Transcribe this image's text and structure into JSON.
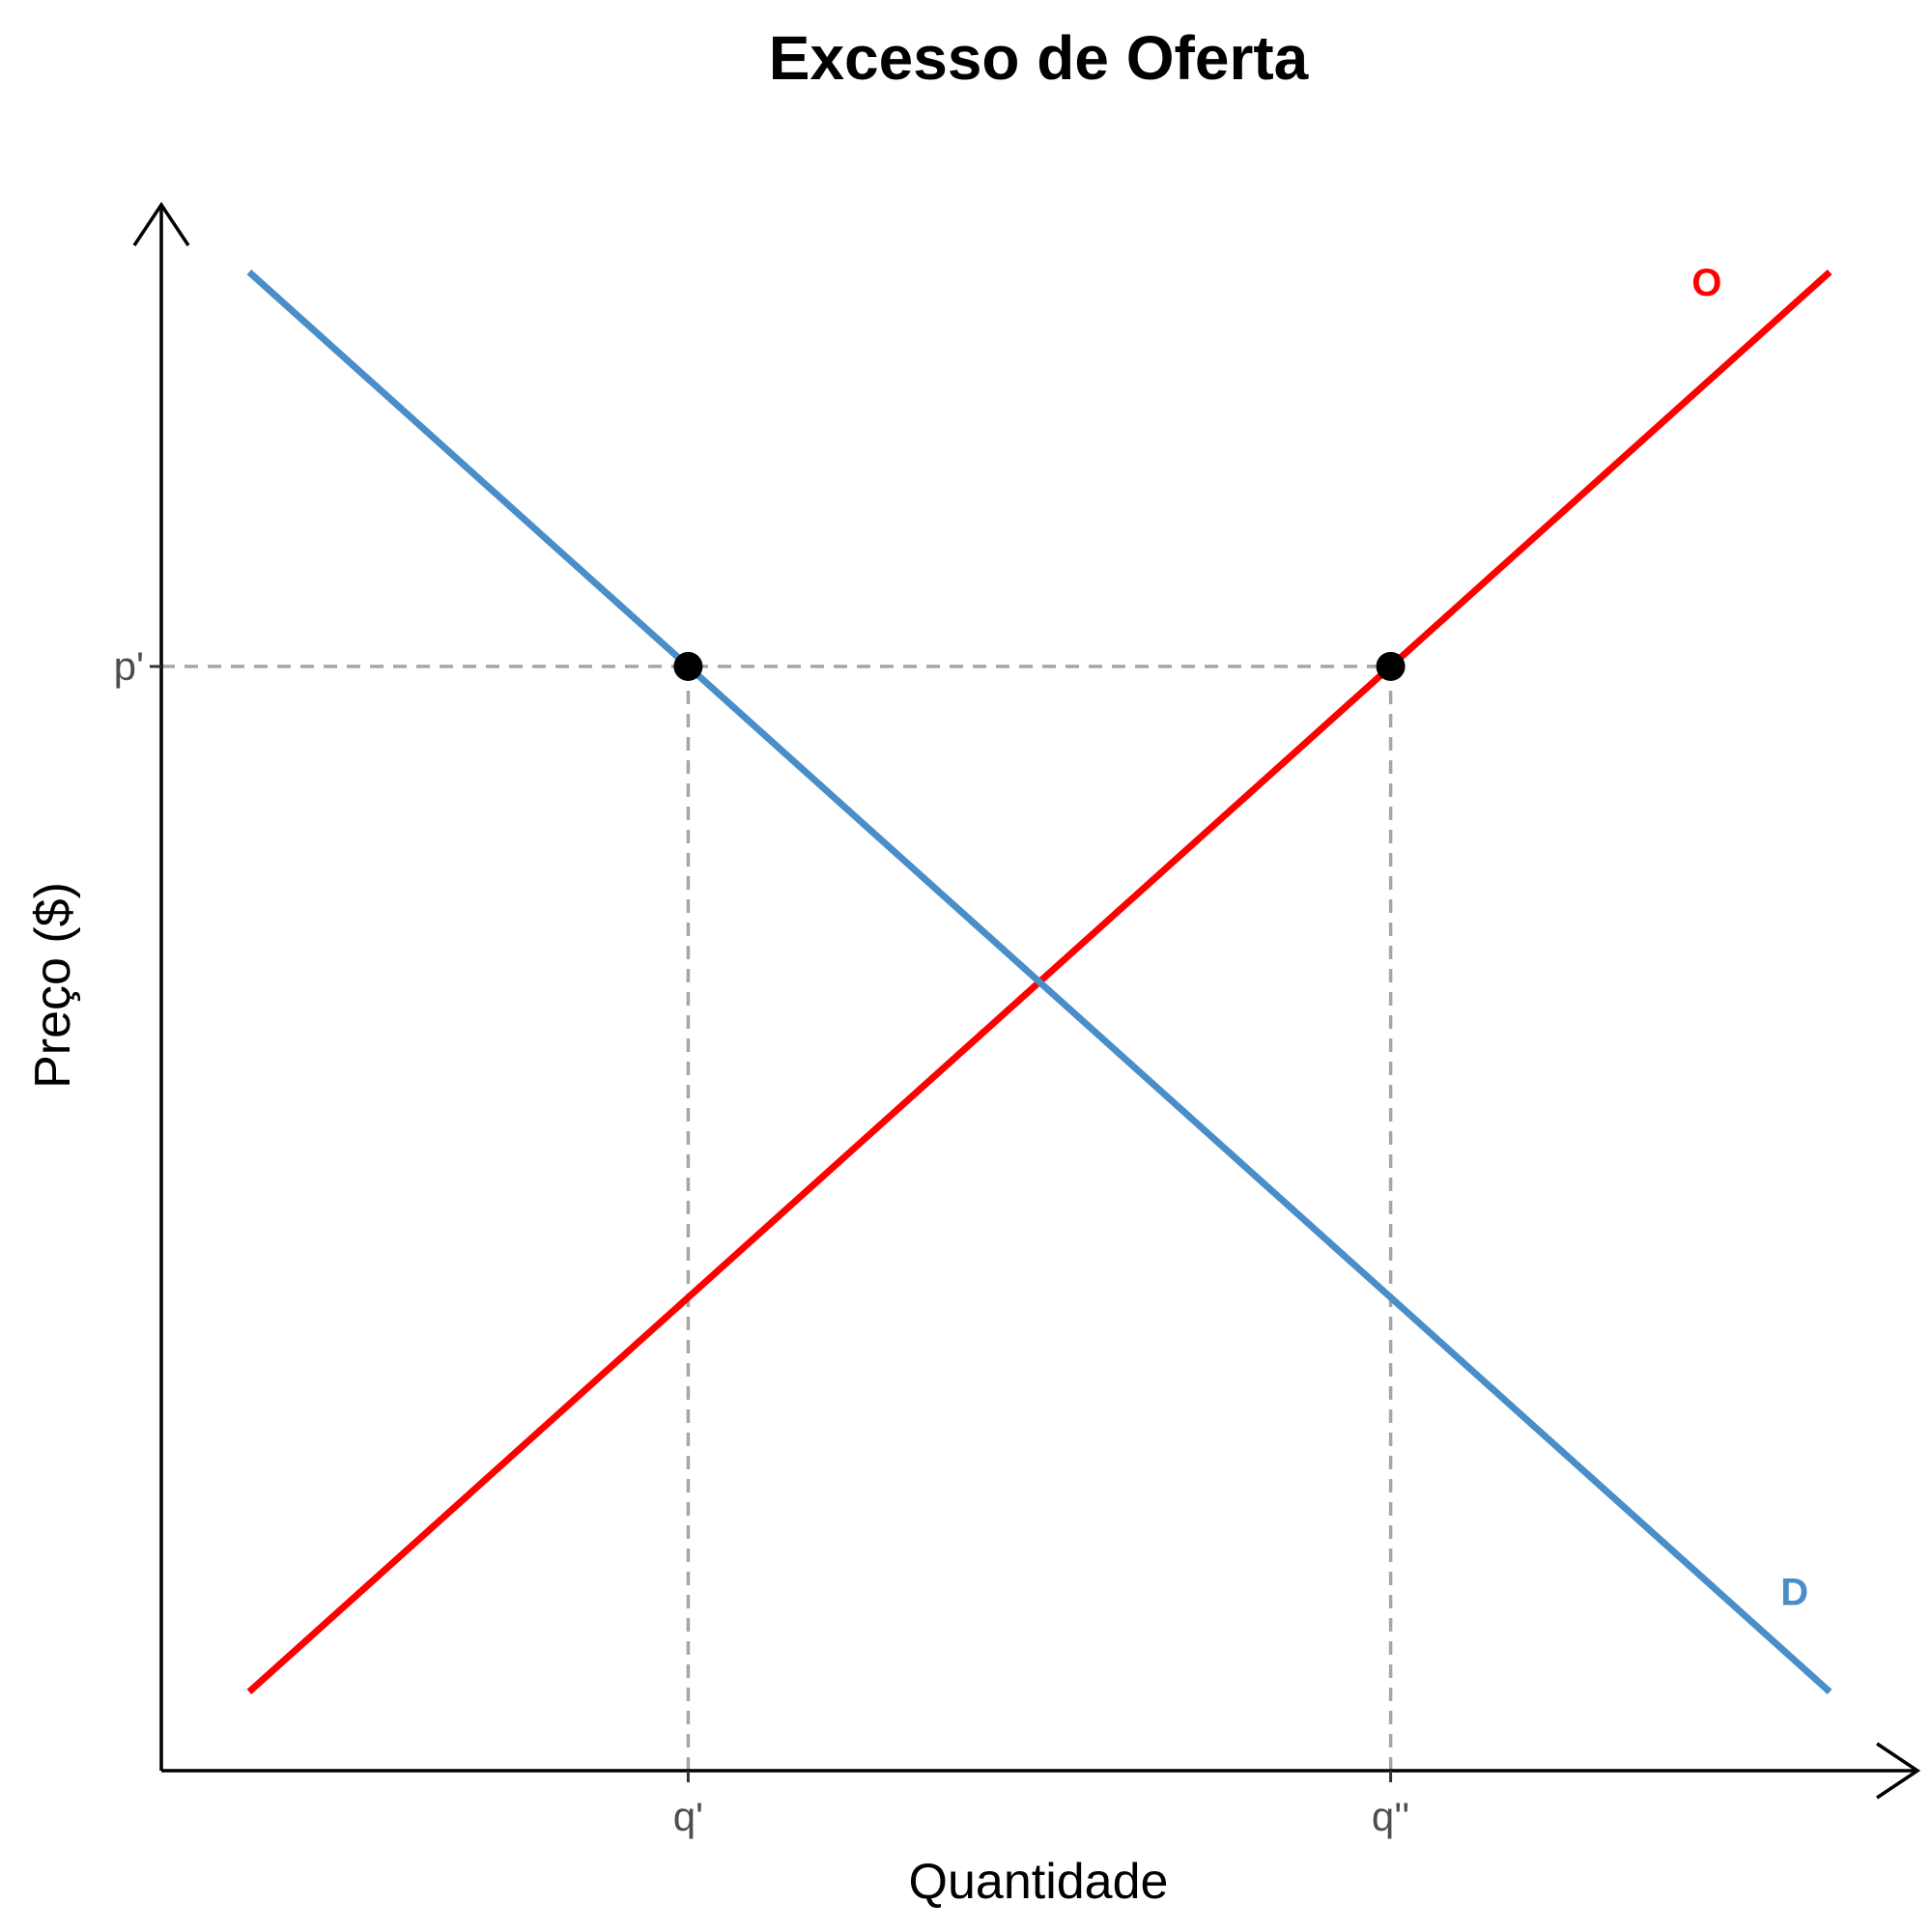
{
  "chart_data": {
    "type": "line",
    "title": "Excesso de Oferta",
    "xlabel": "Quantidade",
    "ylabel": "Preço ($)",
    "xlim": [
      0,
      10
    ],
    "ylim": [
      0,
      10
    ],
    "grid": false,
    "x_ticks": [
      {
        "value": 3,
        "label": "q'"
      },
      {
        "value": 7,
        "label": "q''"
      }
    ],
    "y_ticks": [
      {
        "value": 7,
        "label": "p'"
      }
    ],
    "series": [
      {
        "name": "O",
        "color": "#ff0000",
        "x": [
          0.5,
          9.5
        ],
        "y": [
          0.5,
          9.5
        ]
      },
      {
        "name": "D",
        "color": "#4a8ec9",
        "x": [
          0.5,
          9.5
        ],
        "y": [
          9.5,
          0.5
        ]
      }
    ],
    "points": [
      {
        "x": 3,
        "y": 7
      },
      {
        "x": 7,
        "y": 7
      }
    ],
    "reference_lines": [
      {
        "from": [
          0,
          7
        ],
        "to": [
          7,
          7
        ],
        "style": "dashed",
        "color": "#a6a6a6"
      },
      {
        "from": [
          3,
          0
        ],
        "to": [
          3,
          7
        ],
        "style": "dashed",
        "color": "#a6a6a6"
      },
      {
        "from": [
          7,
          0
        ],
        "to": [
          7,
          7
        ],
        "style": "dashed",
        "color": "#a6a6a6"
      }
    ],
    "curve_labels": [
      {
        "text": "O",
        "x": 8.8,
        "y": 9.35,
        "color": "#ff0000"
      },
      {
        "text": "D",
        "x": 9.3,
        "y": 1.05,
        "color": "#4a8ec9"
      }
    ]
  }
}
